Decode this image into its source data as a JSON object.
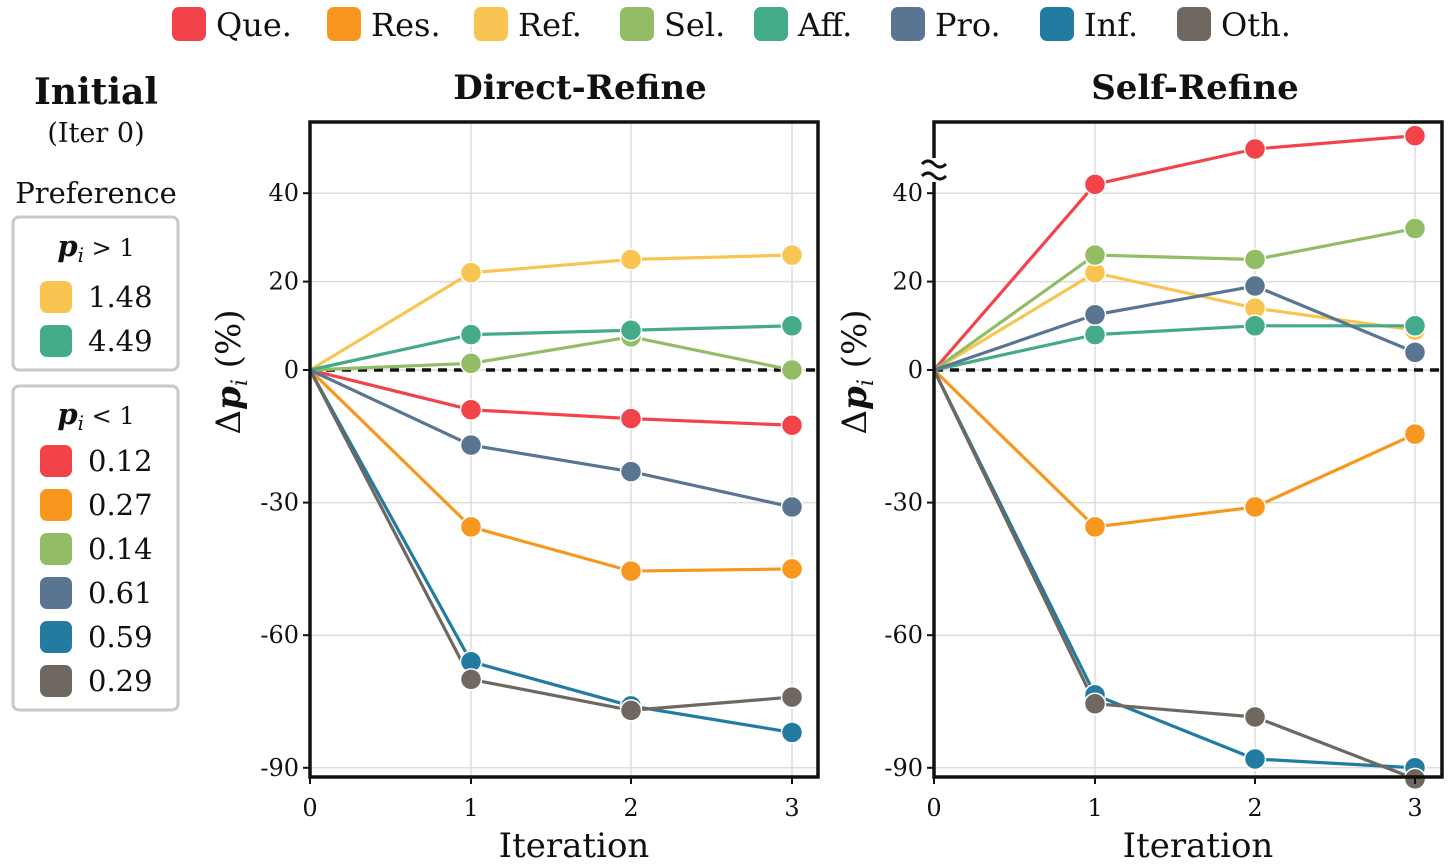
{
  "legend": [
    {
      "abbr": "Que.",
      "color": "#f2434a"
    },
    {
      "abbr": "Res.",
      "color": "#f7971e"
    },
    {
      "abbr": "Ref.",
      "color": "#f8c552"
    },
    {
      "abbr": "Sel.",
      "color": "#92bd65"
    },
    {
      "abbr": "Aff.",
      "color": "#44ab8a"
    },
    {
      "abbr": "Pro.",
      "color": "#5a7591"
    },
    {
      "abbr": "Inf.",
      "color": "#237ba1"
    },
    {
      "abbr": "Oth.",
      "color": "#6f6860"
    }
  ],
  "side_panel": {
    "title": "Initial",
    "subtitle": "(Iter 0)",
    "preference_label": "Preference",
    "group_high": {
      "header_var": "p",
      "header_sub": "i",
      "header_rel": "> 1",
      "items": [
        {
          "category": "Ref.",
          "value": "1.48",
          "color": "#f8c552"
        },
        {
          "category": "Aff.",
          "value": "4.49",
          "color": "#44ab8a"
        }
      ]
    },
    "group_low": {
      "header_var": "p",
      "header_sub": "i",
      "header_rel": "< 1",
      "items": [
        {
          "category": "Que.",
          "value": "0.12",
          "color": "#f2434a"
        },
        {
          "category": "Res.",
          "value": "0.27",
          "color": "#f7971e"
        },
        {
          "category": "Sel.",
          "value": "0.14",
          "color": "#92bd65"
        },
        {
          "category": "Pro.",
          "value": "0.61",
          "color": "#5a7591"
        },
        {
          "category": "Inf.",
          "value": "0.59",
          "color": "#237ba1"
        },
        {
          "category": "Oth.",
          "value": "0.29",
          "color": "#6f6860"
        }
      ]
    }
  },
  "chart_data": [
    {
      "type": "line",
      "title": "Direct-Refine",
      "xlabel": "Iteration",
      "ylabel_prefix": "Δ",
      "ylabel_var": "p",
      "ylabel_sub": "i",
      "ylabel_suffix": "(%)",
      "x": [
        0,
        1,
        2,
        3
      ],
      "xticks": [
        "0",
        "1",
        "2",
        "3"
      ],
      "yticks": [
        40,
        20,
        0,
        -30,
        -60,
        -90
      ],
      "ytick_labels": [
        "40",
        "20",
        "0",
        "-30",
        "-60",
        "-90"
      ],
      "reference_line": 0,
      "axis_break": false,
      "series": [
        {
          "name": "Que.",
          "color": "#f2434a",
          "values": [
            0,
            -9,
            -11,
            -12.5
          ]
        },
        {
          "name": "Res.",
          "color": "#f7971e",
          "values": [
            0,
            -35.5,
            -45.5,
            -45
          ]
        },
        {
          "name": "Ref.",
          "color": "#f8c552",
          "values": [
            0,
            22,
            25,
            26
          ]
        },
        {
          "name": "Sel.",
          "color": "#92bd65",
          "values": [
            0,
            1.5,
            7.5,
            0
          ]
        },
        {
          "name": "Aff.",
          "color": "#44ab8a",
          "values": [
            0,
            8,
            9,
            10
          ]
        },
        {
          "name": "Pro.",
          "color": "#5a7591",
          "values": [
            0,
            -17,
            -23,
            -31
          ]
        },
        {
          "name": "Inf.",
          "color": "#237ba1",
          "values": [
            0,
            -66,
            -76,
            -82
          ]
        },
        {
          "name": "Oth.",
          "color": "#6f6860",
          "values": [
            0,
            -70,
            -77,
            -74
          ]
        }
      ]
    },
    {
      "type": "line",
      "title": "Self-Refine",
      "xlabel": "Iteration",
      "ylabel_prefix": "Δ",
      "ylabel_var": "p",
      "ylabel_sub": "i",
      "ylabel_suffix": "(%)",
      "x": [
        0,
        1,
        2,
        3
      ],
      "xticks": [
        "0",
        "1",
        "2",
        "3"
      ],
      "yticks": [
        40,
        20,
        0,
        -30,
        -60,
        -90
      ],
      "ytick_labels": [
        "40",
        "20",
        "0",
        "-30",
        "-60",
        "-90"
      ],
      "reference_line": 0,
      "axis_break": true,
      "series": [
        {
          "name": "Que.",
          "color": "#f2434a",
          "values": [
            0,
            42,
            50,
            53
          ]
        },
        {
          "name": "Res.",
          "color": "#f7971e",
          "values": [
            0,
            -35.5,
            -31,
            -14.5
          ]
        },
        {
          "name": "Ref.",
          "color": "#f8c552",
          "values": [
            0,
            22,
            14,
            9
          ]
        },
        {
          "name": "Sel.",
          "color": "#92bd65",
          "values": [
            0,
            26,
            25,
            32
          ]
        },
        {
          "name": "Aff.",
          "color": "#44ab8a",
          "values": [
            0,
            8,
            10,
            10
          ]
        },
        {
          "name": "Pro.",
          "color": "#5a7591",
          "values": [
            0,
            12.5,
            19,
            4
          ]
        },
        {
          "name": "Inf.",
          "color": "#237ba1",
          "values": [
            0,
            -73.5,
            -88,
            -90
          ]
        },
        {
          "name": "Oth.",
          "color": "#6f6860",
          "values": [
            0,
            -75.5,
            -78.5,
            -92.5
          ]
        }
      ]
    }
  ]
}
